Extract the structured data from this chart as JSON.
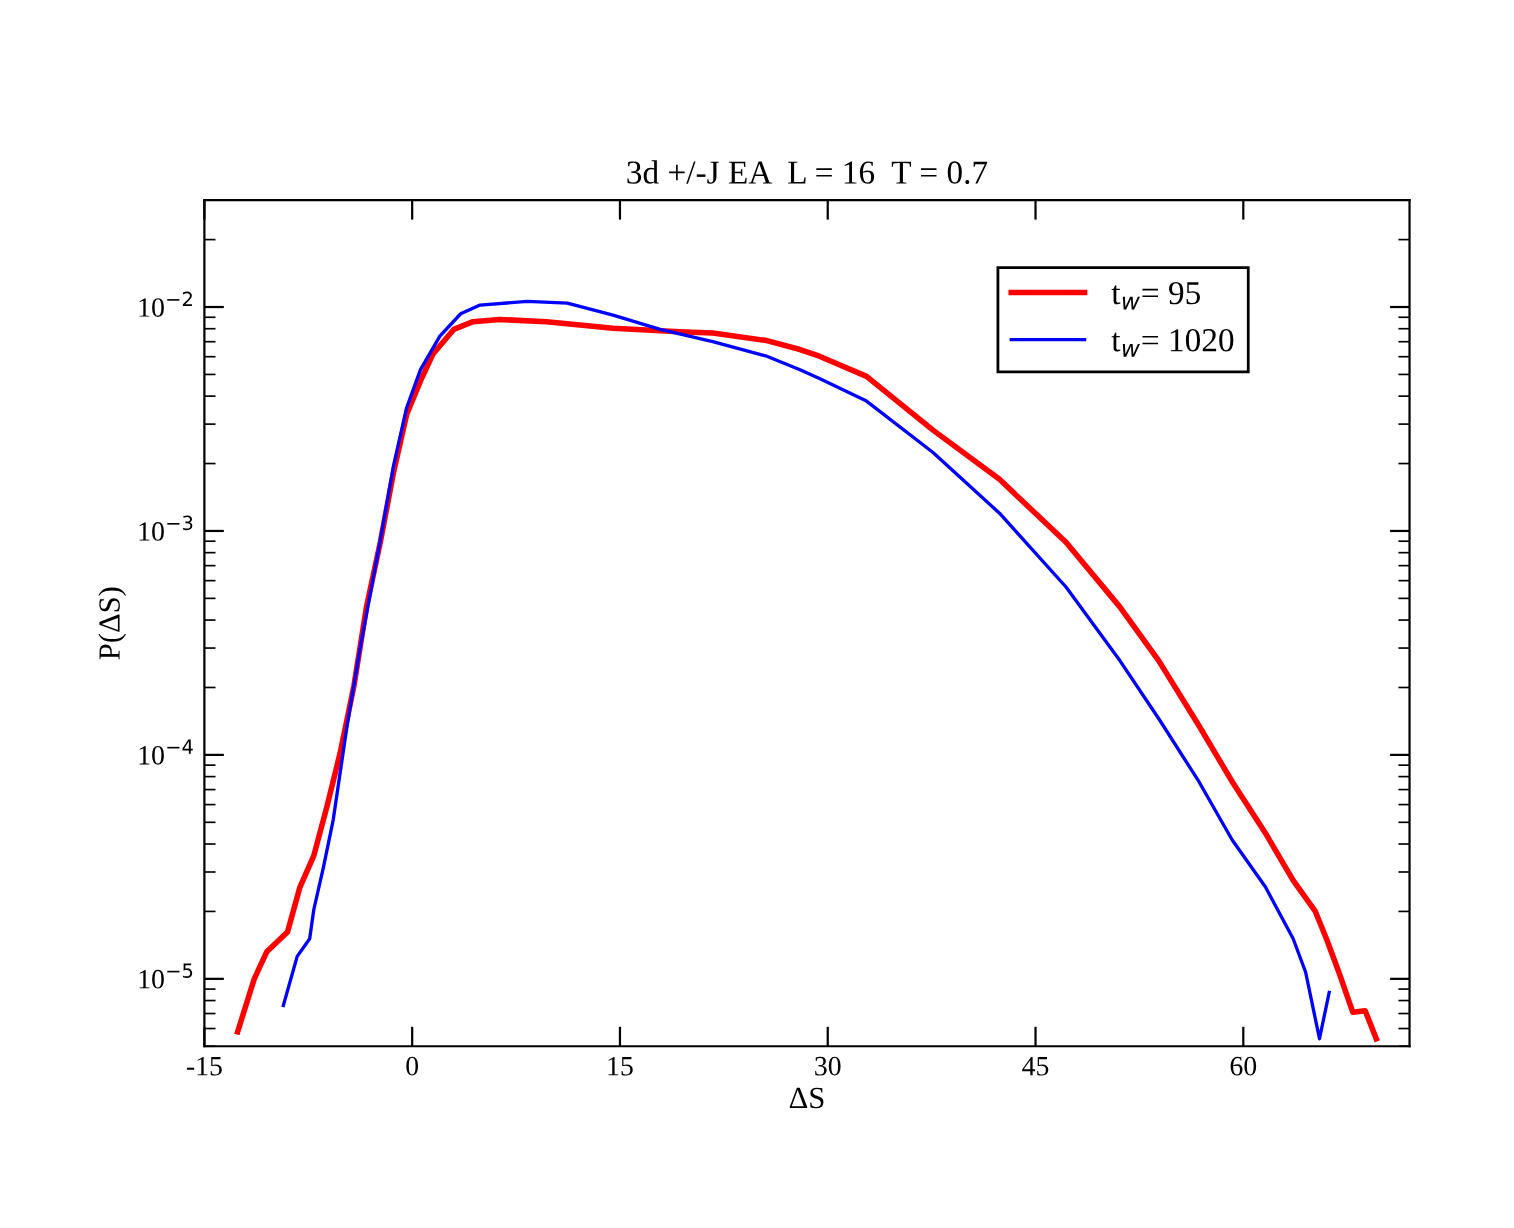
{
  "chart_data": {
    "type": "line",
    "title": "3d +/-J EA  L = 16  T = 0.7",
    "xlabel": "ΔS",
    "ylabel": "P(ΔS)",
    "log": "y",
    "grid": false,
    "legend": "top right",
    "marker": "none",
    "line_style": "solid",
    "xlim": [
      -15,
      72
    ],
    "xticks": [
      -15,
      0,
      15,
      30,
      45,
      60
    ],
    "ylim": [
      5e-06,
      0.03
    ],
    "yticks": [
      {
        "value": 1e-05,
        "label": "10$^{−5}$"
      },
      {
        "value": 0.0001,
        "label": "10$^{−4}$"
      },
      {
        "value": 0.001,
        "label": "10$^{−3}$"
      },
      {
        "value": 0.01,
        "label": "10$^{−2}$"
      }
    ],
    "series": [
      {
        "name": "t$_{w}$= 95",
        "color": "#ff0000",
        "x": [
          -12.6,
          -11.4,
          -10.5,
          -9.0,
          -8.1,
          -7.1,
          -6.15,
          -5.2,
          -4.2,
          -3.3,
          -2.3,
          -1.35,
          -0.4,
          0.6,
          1.5,
          3.0,
          4.4,
          6.3,
          9.7,
          14.5,
          19.3,
          21.7,
          25.6,
          28.0,
          29.4,
          32.8,
          37.6,
          42.4,
          47.2,
          51.1,
          53.9,
          56.8,
          59.2,
          61.6,
          63.6,
          65.2,
          66.0,
          66.9,
          67.9,
          68.8,
          69.6
        ],
        "values": [
          5.8e-06,
          1e-05,
          1.32e-05,
          1.62e-05,
          2.57e-05,
          3.55e-05,
          5.89e-05,
          0.000102,
          0.000204,
          0.000457,
          0.00089,
          0.00182,
          0.00331,
          0.00468,
          0.00617,
          0.00794,
          0.0086,
          0.0088,
          0.0086,
          0.00804,
          0.00776,
          0.00766,
          0.00708,
          0.00646,
          0.00603,
          0.0049,
          0.00282,
          0.0017,
          0.00089,
          0.000457,
          0.000263,
          0.000135,
          7.59e-05,
          4.47e-05,
          2.75e-05,
          2e-05,
          1.51e-05,
          1.07e-05,
          7.1e-06,
          7.2e-06,
          5.4e-06
        ]
      },
      {
        "name": "t$_{w}$= 1020",
        "color": "#0000ff",
        "x": [
          -9.3,
          -8.3,
          -7.4,
          -7.1,
          -6.4,
          -5.7,
          -4.7,
          -3.75,
          -2.3,
          -1.35,
          -0.4,
          0.6,
          2.0,
          3.5,
          4.9,
          8.3,
          11.2,
          14.5,
          17.9,
          21.7,
          25.6,
          28.0,
          29.4,
          32.8,
          37.6,
          42.4,
          47.2,
          51.1,
          53.9,
          56.8,
          59.2,
          61.6,
          63.6,
          64.5,
          65.5,
          66.2
        ],
        "values": [
          7.6e-06,
          1.26e-05,
          1.51e-05,
          2.04e-05,
          3.16e-05,
          5.13e-05,
          0.000135,
          0.000302,
          0.00091,
          0.00195,
          0.00355,
          0.00525,
          0.00741,
          0.00933,
          0.0102,
          0.0106,
          0.0104,
          0.0092,
          0.00794,
          0.007,
          0.00603,
          0.00525,
          0.00479,
          0.0038,
          0.00224,
          0.0012,
          0.000562,
          0.000263,
          0.000145,
          7.59e-05,
          4.17e-05,
          2.57e-05,
          1.51e-05,
          1.07e-05,
          5.4e-06,
          8.7e-06
        ]
      }
    ]
  }
}
